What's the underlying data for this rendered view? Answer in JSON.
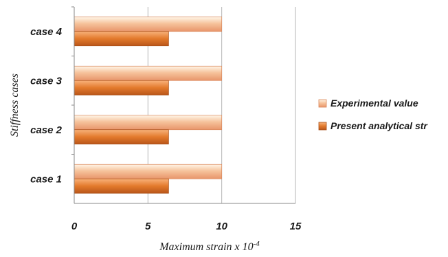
{
  "chart_data": {
    "type": "bar",
    "orientation": "horizontal",
    "categories": [
      "case 1",
      "case 2",
      "case 3",
      "case 4"
    ],
    "series": [
      {
        "name": "Experimental value",
        "values": [
          10,
          10,
          10,
          10
        ],
        "color": "#f0a77e"
      },
      {
        "name": "Present analytical str",
        "values": [
          6.4,
          6.4,
          6.4,
          6.4
        ],
        "color": "#e0772e"
      }
    ],
    "xlabel": "Maximum strain x 10",
    "xlabel_exponent": "-4",
    "ylabel": "Stiffness cases",
    "xlim": [
      0,
      15
    ],
    "xticks": [
      "0",
      "5",
      "10",
      "15"
    ],
    "grid": "vertical",
    "legend_position": "right"
  }
}
